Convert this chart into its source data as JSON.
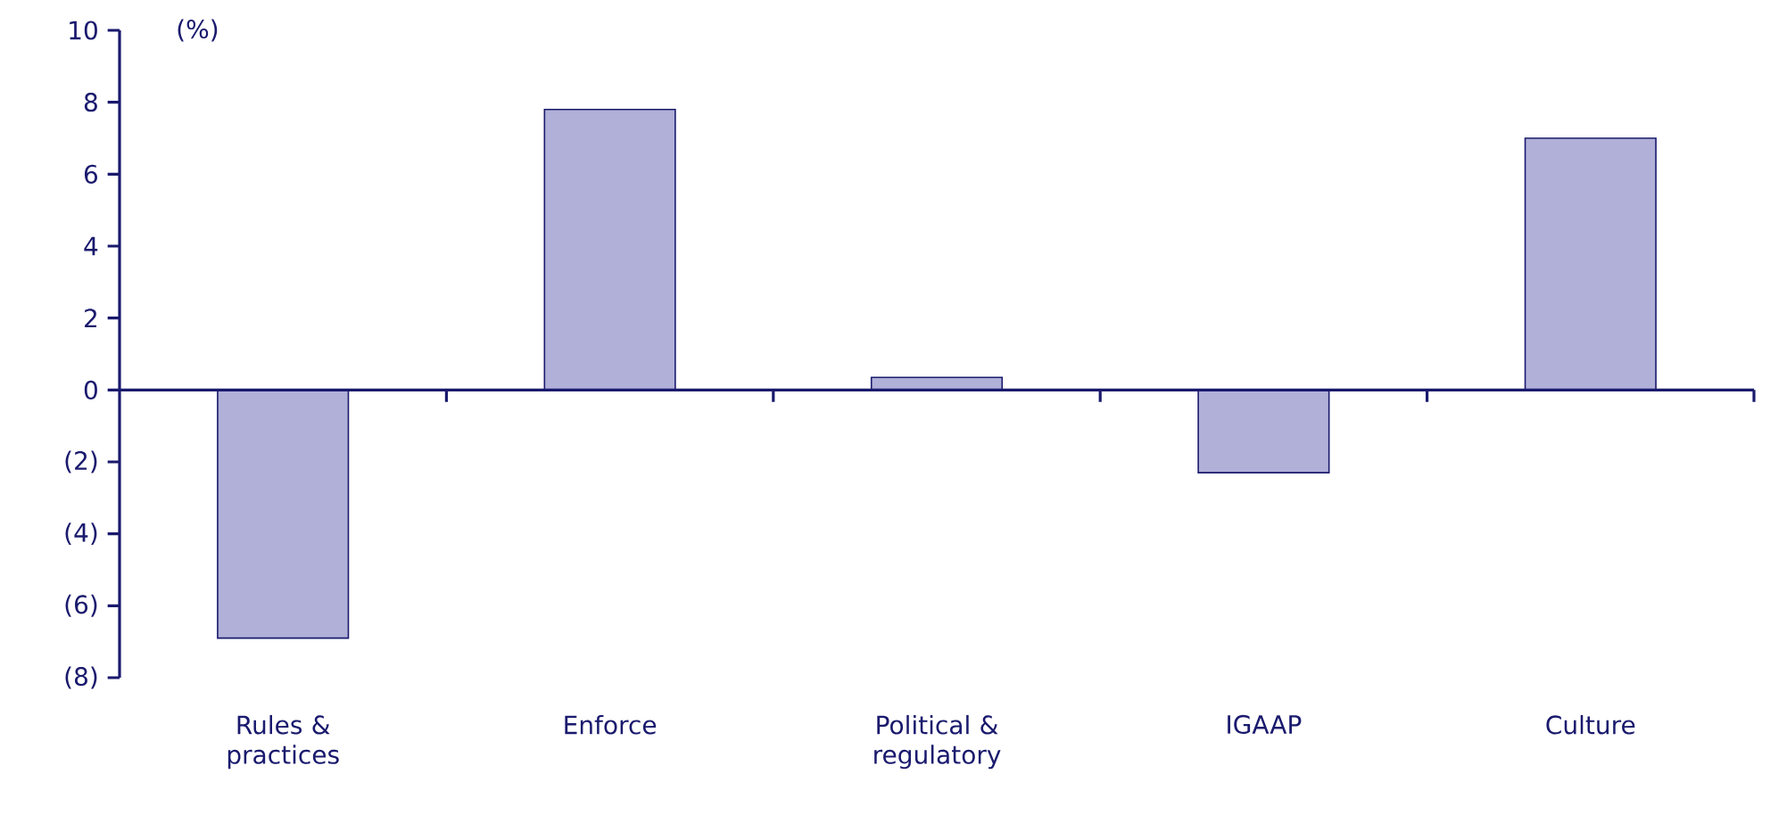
{
  "chart_data": {
    "type": "bar",
    "ylabel": "(%)",
    "categories": [
      "Rules & practices",
      "Enforce",
      "Political & regulatory",
      "IGAAP",
      "Culture"
    ],
    "values": [
      -6.9,
      7.8,
      0.35,
      -2.3,
      7.0
    ],
    "color": "#b0b0d8",
    "ylim": [
      -8,
      10
    ],
    "yticks": [
      {
        "value": -8,
        "label": "(8)"
      },
      {
        "value": -6,
        "label": "(6)"
      },
      {
        "value": -4,
        "label": "(4)"
      },
      {
        "value": -2,
        "label": "(2)"
      },
      0,
      2,
      4,
      6,
      8,
      10
    ],
    "grid": false,
    "ref_lines": [
      {
        "axis": "y",
        "value": 0,
        "color": "#1a1a6e"
      }
    ]
  }
}
